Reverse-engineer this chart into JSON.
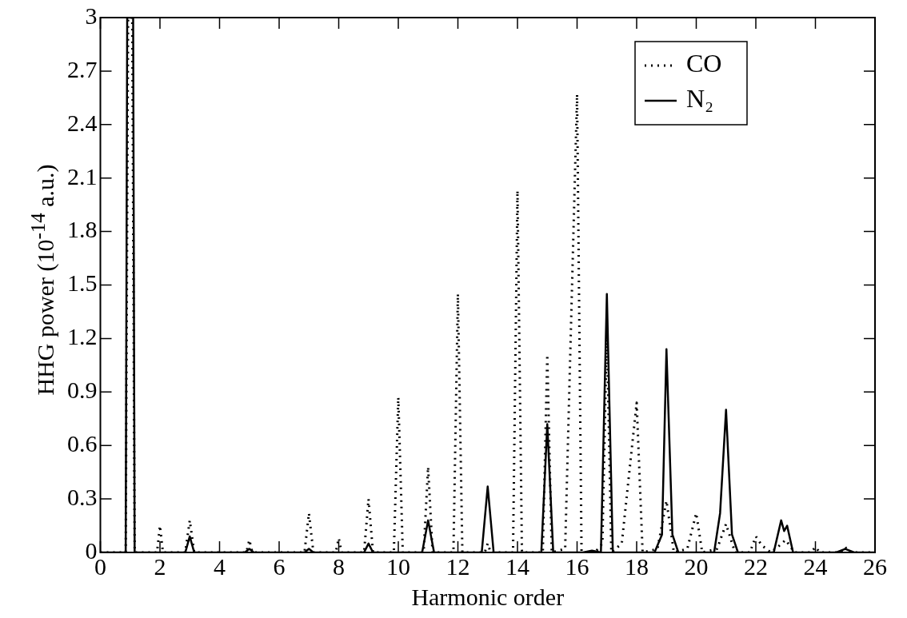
{
  "chart_data": {
    "type": "line",
    "xlabel": "Harmonic order",
    "ylabel": "HHG power (10$^{-14}$ a.u.)",
    "xlim": [
      0,
      26
    ],
    "xticks": [
      0,
      2,
      4,
      6,
      8,
      10,
      12,
      14,
      16,
      18,
      20,
      22,
      24,
      26
    ],
    "ylim": [
      0,
      3
    ],
    "yticks": [
      0,
      0.3,
      0.6,
      0.9,
      1.2,
      1.5,
      1.8,
      2.1,
      2.4,
      2.7,
      3
    ],
    "grid": false,
    "legend": "top right",
    "marker": "none",
    "series": [
      {
        "name": "CO",
        "color": "#000000",
        "line_style": "dotted",
        "x": [
          0,
          0.85,
          0.93,
          1.07,
          1.15,
          1.9,
          2,
          2.1,
          2.85,
          3,
          3.15,
          4.9,
          5,
          5.1,
          6.85,
          7,
          7.15,
          7.9,
          8,
          8.1,
          8.85,
          9,
          9.15,
          9.85,
          10,
          10.15,
          10.85,
          11,
          11.15,
          11.85,
          12,
          12.15,
          12.9,
          13,
          13.1,
          13.85,
          14,
          14.15,
          14.85,
          15,
          15.15,
          15.6,
          16,
          16.15,
          16.6,
          16.85,
          17,
          17.15,
          17.5,
          18,
          18.2,
          18.7,
          19,
          19.25,
          19.7,
          20,
          20.2,
          20.7,
          21,
          21.3,
          21.8,
          22,
          22.2,
          22.5,
          22.8,
          23,
          23.3,
          23.85,
          24,
          24.15,
          24.85,
          25,
          25.15,
          26
        ],
        "values": [
          0,
          0,
          3,
          3,
          0,
          0,
          0.15,
          0,
          0,
          0.18,
          0,
          0,
          0.07,
          0,
          0,
          0.22,
          0,
          0,
          0.08,
          0,
          0,
          0.3,
          0,
          0,
          0.87,
          0,
          0,
          0.48,
          0,
          0,
          1.45,
          0,
          0,
          0.05,
          0,
          0,
          2.03,
          0,
          0,
          1.11,
          0,
          0.02,
          2.57,
          0,
          0,
          0.05,
          1.25,
          0,
          0.05,
          0.84,
          0,
          0.02,
          0.29,
          0,
          0.02,
          0.22,
          0,
          0.02,
          0.16,
          0,
          0,
          0.09,
          0.04,
          0,
          0.04,
          0.07,
          0,
          0,
          0.03,
          0,
          0,
          0.03,
          0,
          0
        ]
      },
      {
        "name": "N₂",
        "color": "#000000",
        "line_style": "solid",
        "x": [
          0,
          0.85,
          0.9,
          1.1,
          1.15,
          2.85,
          3,
          3.15,
          4.85,
          5,
          5.15,
          6.85,
          7,
          7.15,
          8.85,
          9,
          9.15,
          10.8,
          11,
          11.2,
          12.8,
          13,
          13.2,
          14.8,
          15,
          15.2,
          16.2,
          16.5,
          16.8,
          17,
          17.2,
          18.6,
          18.85,
          19,
          19.2,
          19.4,
          20.6,
          20.8,
          21,
          21.2,
          21.4,
          22.6,
          22.85,
          22.95,
          23.05,
          23.25,
          24.7,
          25,
          25.3,
          26
        ],
        "values": [
          0,
          0,
          3,
          3,
          0,
          0,
          0.09,
          0,
          0,
          0.02,
          0,
          0,
          0.02,
          0,
          0,
          0.05,
          0,
          0,
          0.18,
          0,
          0,
          0.37,
          0,
          0,
          0.72,
          0,
          0,
          0.01,
          0,
          1.45,
          0,
          0,
          0.1,
          1.14,
          0.1,
          0,
          0,
          0.22,
          0.8,
          0.1,
          0,
          0,
          0.18,
          0.12,
          0.15,
          0,
          0,
          0.02,
          0,
          0
        ]
      }
    ]
  }
}
